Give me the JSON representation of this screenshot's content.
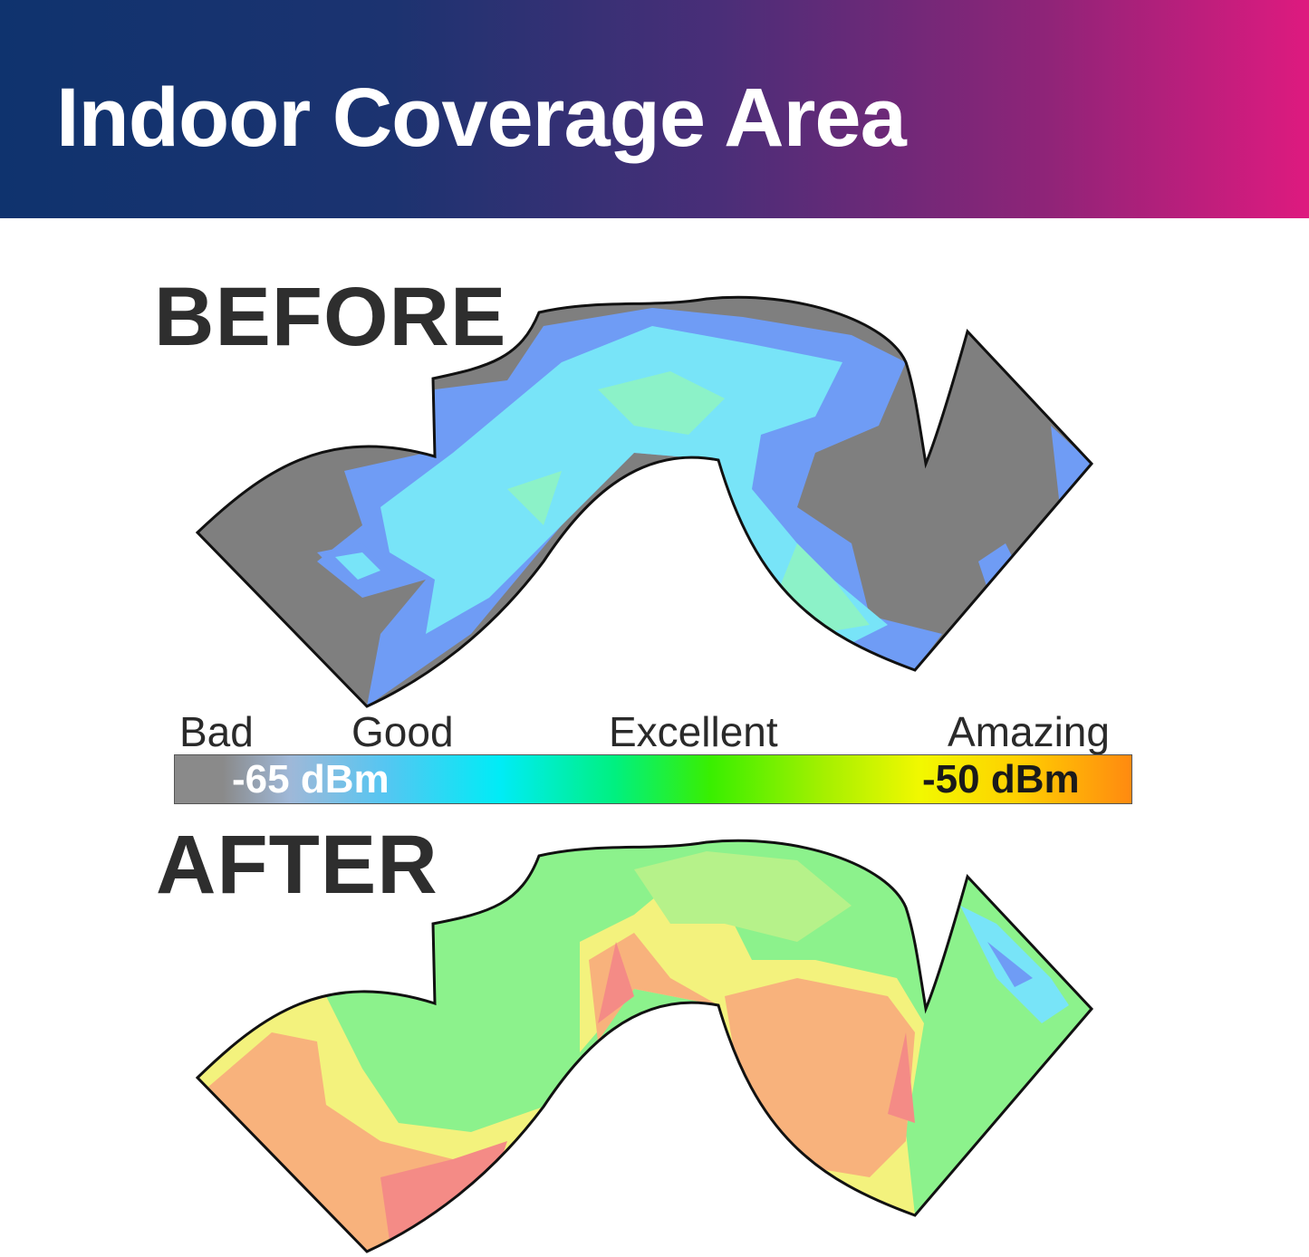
{
  "banner": {
    "title": "Indoor Coverage Area"
  },
  "before": {
    "label": "BEFORE"
  },
  "after": {
    "label": "AFTER"
  },
  "legend": {
    "words": [
      "Bad",
      "Good",
      "Excellent",
      "Amazing"
    ],
    "scale_low": "-65 dBm",
    "scale_high": "-50 dBm"
  },
  "colors": {
    "banner_start": "#0f336e",
    "banner_end": "#de1a7f",
    "no_signal_gray": "#7f7f7f",
    "good_blue": "#6f9cf5",
    "good_cyan": "#78e4f8",
    "excellent_green": "#8cf28c",
    "yellow": "#f3f27d",
    "orange": "#f8b27c",
    "red": "#f48b86"
  }
}
